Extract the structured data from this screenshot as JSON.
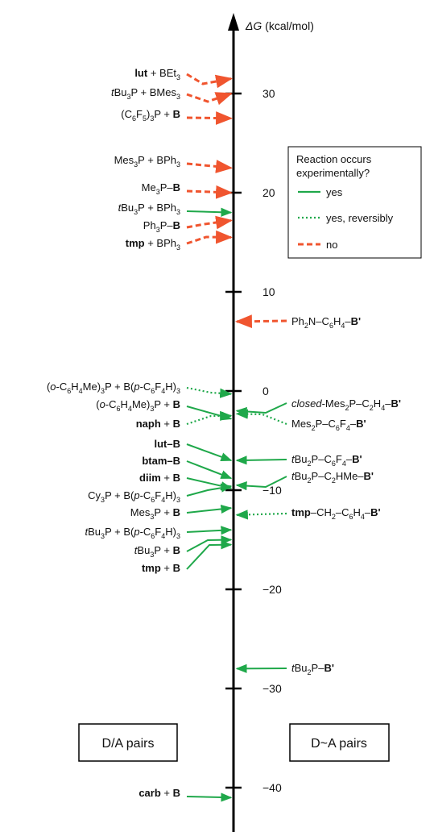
{
  "axis": {
    "title_symbol": "ΔG",
    "title_unit": " (kcal/mol)",
    "unit": "kcal/mol",
    "ticks": [
      {
        "value": 30,
        "label": "30"
      },
      {
        "value": 20,
        "label": "20"
      },
      {
        "value": 10,
        "label": "10"
      },
      {
        "value": 0,
        "label": "0"
      },
      {
        "value": -10,
        "label": "−10"
      },
      {
        "value": -20,
        "label": "−20"
      },
      {
        "value": -30,
        "label": "−30"
      },
      {
        "value": -40,
        "label": "−40"
      }
    ]
  },
  "legend": {
    "title_line1": "Reaction occurs",
    "title_line2": "experimentally?",
    "items": [
      {
        "style": "yes",
        "label": "yes"
      },
      {
        "style": "reversibly",
        "label": "yes, reversibly"
      },
      {
        "style": "no",
        "label": "no"
      }
    ]
  },
  "colors": {
    "yes": "#1fa84a",
    "reversibly": "#1fa84a",
    "no": "#f0552f",
    "axis": "#000000",
    "text": "#111111"
  },
  "boxes": {
    "left_label": "D/A pairs",
    "right_label": "D~A pairs"
  },
  "left_entries": [
    {
      "label": [
        {
          "t": "lut",
          "b": true
        },
        {
          "t": " + BEt"
        },
        {
          "t": "3",
          "sub": true
        }
      ],
      "dG": 31.5,
      "status": "no"
    },
    {
      "label": [
        {
          "t": "t",
          "i": true
        },
        {
          "t": "Bu"
        },
        {
          "t": "3",
          "sub": true
        },
        {
          "t": "P + BMes"
        },
        {
          "t": "3",
          "sub": true
        }
      ],
      "dG": 30.0,
      "status": "no"
    },
    {
      "label": [
        {
          "t": "(C"
        },
        {
          "t": "6",
          "sub": true
        },
        {
          "t": "F"
        },
        {
          "t": "5",
          "sub": true
        },
        {
          "t": ")"
        },
        {
          "t": "3",
          "sub": true
        },
        {
          "t": "P + "
        },
        {
          "t": "B",
          "b": true
        }
      ],
      "dG": 27.5,
      "status": "no"
    },
    {
      "label": [
        {
          "t": "Mes"
        },
        {
          "t": "3",
          "sub": true
        },
        {
          "t": "P + BPh"
        },
        {
          "t": "3",
          "sub": true
        }
      ],
      "dG": 22.5,
      "status": "no"
    },
    {
      "label": [
        {
          "t": "Me"
        },
        {
          "t": "3",
          "sub": true
        },
        {
          "t": "P–"
        },
        {
          "t": "B",
          "b": true
        }
      ],
      "dG": 20.0,
      "status": "no"
    },
    {
      "label": [
        {
          "t": "t",
          "i": true
        },
        {
          "t": "Bu"
        },
        {
          "t": "3",
          "sub": true
        },
        {
          "t": "P + BPh"
        },
        {
          "t": "3",
          "sub": true
        }
      ],
      "dG": 18.0,
      "status": "yes"
    },
    {
      "label": [
        {
          "t": "Ph"
        },
        {
          "t": "3",
          "sub": true
        },
        {
          "t": "P–"
        },
        {
          "t": "B",
          "b": true
        }
      ],
      "dG": 17.2,
      "status": "no"
    },
    {
      "label": [
        {
          "t": "tmp",
          "b": true
        },
        {
          "t": " + BPh"
        },
        {
          "t": "3",
          "sub": true
        }
      ],
      "dG": 15.5,
      "status": "no"
    },
    {
      "label": [
        {
          "t": "("
        },
        {
          "t": "o",
          "i": true
        },
        {
          "t": "-C"
        },
        {
          "t": "6",
          "sub": true
        },
        {
          "t": "H"
        },
        {
          "t": "4",
          "sub": true
        },
        {
          "t": "Me)"
        },
        {
          "t": "3",
          "sub": true
        },
        {
          "t": "P + B("
        },
        {
          "t": "p",
          "i": true
        },
        {
          "t": "-C"
        },
        {
          "t": "6",
          "sub": true
        },
        {
          "t": "F"
        },
        {
          "t": "4",
          "sub": true
        },
        {
          "t": "H)"
        },
        {
          "t": "3",
          "sub": true
        }
      ],
      "dG": -0.3,
      "status": "reversibly"
    },
    {
      "label": [
        {
          "t": "("
        },
        {
          "t": "o",
          "i": true
        },
        {
          "t": "-C"
        },
        {
          "t": "6",
          "sub": true
        },
        {
          "t": "H"
        },
        {
          "t": "4",
          "sub": true
        },
        {
          "t": "Me)"
        },
        {
          "t": "3",
          "sub": true
        },
        {
          "t": "P + "
        },
        {
          "t": "B",
          "b": true
        }
      ],
      "dG": -2.8,
      "status": "yes"
    },
    {
      "label": [
        {
          "t": "naph",
          "b": true
        },
        {
          "t": " + "
        },
        {
          "t": "B",
          "b": true
        }
      ],
      "dG": -2.5,
      "status": "reversibly"
    },
    {
      "label": [
        {
          "t": "lut–B",
          "b": true
        }
      ],
      "dG": -7.0,
      "status": "yes"
    },
    {
      "label": [
        {
          "t": "btam–B",
          "b": true
        }
      ],
      "dG": -8.8,
      "status": "yes"
    },
    {
      "label": [
        {
          "t": "diim",
          "b": true
        },
        {
          "t": " + "
        },
        {
          "t": "B",
          "b": true
        }
      ],
      "dG": -9.8,
      "status": "yes"
    },
    {
      "label": [
        {
          "t": "Cy"
        },
        {
          "t": "3",
          "sub": true
        },
        {
          "t": "P + B("
        },
        {
          "t": "p",
          "i": true
        },
        {
          "t": "-C"
        },
        {
          "t": "6",
          "sub": true
        },
        {
          "t": "F"
        },
        {
          "t": "4",
          "sub": true
        },
        {
          "t": "H)"
        },
        {
          "t": "3",
          "sub": true
        }
      ],
      "dG": -9.6,
      "status": "yes"
    },
    {
      "label": [
        {
          "t": "Mes"
        },
        {
          "t": "3",
          "sub": true
        },
        {
          "t": "P + "
        },
        {
          "t": "B",
          "b": true
        }
      ],
      "dG": -11.8,
      "status": "yes"
    },
    {
      "label": [
        {
          "t": "t",
          "i": true
        },
        {
          "t": "Bu"
        },
        {
          "t": "3",
          "sub": true
        },
        {
          "t": "P + B("
        },
        {
          "t": "p",
          "i": true
        },
        {
          "t": "-C"
        },
        {
          "t": "6",
          "sub": true
        },
        {
          "t": "F"
        },
        {
          "t": "4",
          "sub": true
        },
        {
          "t": "H)"
        },
        {
          "t": "3",
          "sub": true
        }
      ],
      "dG": -14.0,
      "status": "yes"
    },
    {
      "label": [
        {
          "t": "t",
          "i": true
        },
        {
          "t": "Bu"
        },
        {
          "t": "3",
          "sub": true
        },
        {
          "t": "P + "
        },
        {
          "t": "B",
          "b": true
        }
      ],
      "dG": -15.0,
      "status": "yes"
    },
    {
      "label": [
        {
          "t": "tmp",
          "b": true
        },
        {
          "t": " + "
        },
        {
          "t": "B",
          "b": true
        }
      ],
      "dG": -15.5,
      "status": "yes"
    },
    {
      "label": [
        {
          "t": "carb",
          "b": true
        },
        {
          "t": " + "
        },
        {
          "t": "B",
          "b": true
        }
      ],
      "dG": -41.0,
      "status": "yes"
    }
  ],
  "right_entries": [
    {
      "label": [
        {
          "t": "Ph"
        },
        {
          "t": "2",
          "sub": true
        },
        {
          "t": "N–C"
        },
        {
          "t": "6",
          "sub": true
        },
        {
          "t": "H"
        },
        {
          "t": "4",
          "sub": true
        },
        {
          "t": "–"
        },
        {
          "t": "B'",
          "b": true
        }
      ],
      "dG": 7.0,
      "status": "no"
    },
    {
      "label": [
        {
          "t": "closed",
          "i": true
        },
        {
          "t": "-Mes"
        },
        {
          "t": "2",
          "sub": true
        },
        {
          "t": "P–C"
        },
        {
          "t": "2",
          "sub": true
        },
        {
          "t": "H"
        },
        {
          "t": "4",
          "sub": true
        },
        {
          "t": "–"
        },
        {
          "t": "B'",
          "b": true
        }
      ],
      "dG": -2.0,
      "status": "yes"
    },
    {
      "label": [
        {
          "t": "Mes"
        },
        {
          "t": "2",
          "sub": true
        },
        {
          "t": "P–C"
        },
        {
          "t": "6",
          "sub": true
        },
        {
          "t": "F"
        },
        {
          "t": "4",
          "sub": true
        },
        {
          "t": "–"
        },
        {
          "t": "B'",
          "b": true
        }
      ],
      "dG": -2.3,
      "status": "reversibly"
    },
    {
      "label": [
        {
          "t": "t",
          "i": true
        },
        {
          "t": "Bu"
        },
        {
          "t": "2",
          "sub": true
        },
        {
          "t": "P–C"
        },
        {
          "t": "6",
          "sub": true
        },
        {
          "t": "F"
        },
        {
          "t": "4",
          "sub": true
        },
        {
          "t": "–"
        },
        {
          "t": "B'",
          "b": true
        }
      ],
      "dG": -7.0,
      "status": "yes"
    },
    {
      "label": [
        {
          "t": "t",
          "i": true
        },
        {
          "t": "Bu"
        },
        {
          "t": "2",
          "sub": true
        },
        {
          "t": "P–C"
        },
        {
          "t": "2",
          "sub": true
        },
        {
          "t": "HMe–"
        },
        {
          "t": "B'",
          "b": true
        }
      ],
      "dG": -9.5,
      "status": "yes"
    },
    {
      "label": [
        {
          "t": "tmp",
          "b": true
        },
        {
          "t": "–CH"
        },
        {
          "t": "2",
          "sub": true
        },
        {
          "t": "–C"
        },
        {
          "t": "6",
          "sub": true
        },
        {
          "t": "H"
        },
        {
          "t": "4",
          "sub": true
        },
        {
          "t": "–"
        },
        {
          "t": "B'",
          "b": true
        }
      ],
      "dG": -12.5,
      "status": "reversibly"
    },
    {
      "label": [
        {
          "t": "t",
          "i": true
        },
        {
          "t": "Bu"
        },
        {
          "t": "2",
          "sub": true
        },
        {
          "t": "P–"
        },
        {
          "t": "B'",
          "b": true
        }
      ],
      "dG": -28.0,
      "status": "yes"
    }
  ]
}
